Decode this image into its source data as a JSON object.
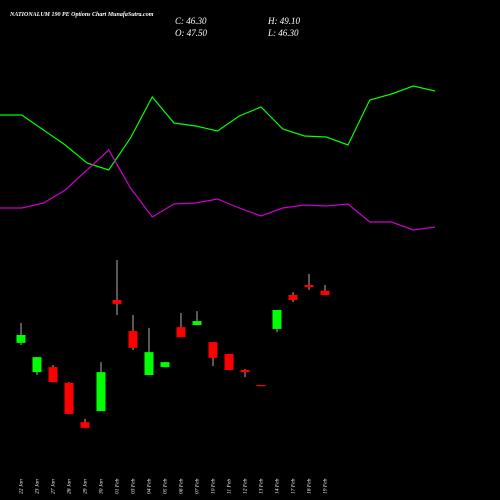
{
  "header": {
    "title": "NATIONALUM 190 PE Options Chart MunafaSutra.com",
    "close": "C: 46.30",
    "open": "O: 47.50",
    "high": "H: 49.10",
    "low": "L: 46.30"
  },
  "chart_data": [
    {
      "type": "line",
      "x": [
        0,
        1,
        2,
        3,
        4,
        5,
        6,
        7,
        8,
        9,
        10,
        11,
        12,
        13,
        14,
        15,
        16,
        17,
        18,
        19,
        20
      ],
      "xlim": [
        0,
        20
      ],
      "ylim": [
        0,
        100
      ],
      "series": [
        {
          "color": "#00ff00",
          "values": [
            67.5,
            67.5,
            60,
            52.5,
            43.5,
            40,
            56,
            76.5,
            63.5,
            62,
            59.5,
            67,
            71.5,
            60.5,
            57,
            56.5,
            52.5,
            75,
            78,
            82,
            79.5
          ]
        },
        {
          "color": "#cc00cc",
          "values": [
            21,
            21,
            23.5,
            30,
            40,
            50,
            31,
            16.5,
            23,
            23.5,
            25.5,
            21,
            17,
            21,
            22.5,
            22,
            23,
            14,
            14,
            10,
            11.5
          ]
        }
      ]
    },
    {
      "type": "candlestick",
      "ylim": [
        5.7,
        57.5
      ],
      "up_color": "#00ff00",
      "down_color": "#ff0000",
      "wick_color": "#dddddd",
      "categories": [
        "22 Jan",
        "23 Jan",
        "27 Jan",
        "28 Jan",
        "29 Jan",
        "30 Jan",
        "01 Feb",
        "03 Feb",
        "04 Feb",
        "05 Feb",
        "06 Feb",
        "07 Feb",
        "10 Feb",
        "11 Feb",
        "12 Feb",
        "13 Feb",
        "14 Feb",
        "17 Feb",
        "18 Feb",
        "19 Feb"
      ],
      "open": [
        32.9,
        24.7,
        26.1,
        21.7,
        10.7,
        13.8,
        44.9,
        36.2,
        23.9,
        26.1,
        37.3,
        37.9,
        33.1,
        29.8,
        25.3,
        21.1,
        36.8,
        46.3,
        49.1,
        47.5
      ],
      "close": [
        35.1,
        28.9,
        21.9,
        13.0,
        9.1,
        24.7,
        43.8,
        31.5,
        30.3,
        27.5,
        34.5,
        39.0,
        28.7,
        25.3,
        24.7,
        20.8,
        42.1,
        44.9,
        48.5,
        46.3
      ],
      "high": [
        38.5,
        28.9,
        26.7,
        21.9,
        11.6,
        27.5,
        56.1,
        40.7,
        37.1,
        27.5,
        41.3,
        41.8,
        33.1,
        29.8,
        25.6,
        21.1,
        42.1,
        47.1,
        52.2,
        49.1
      ],
      "low": [
        32.3,
        23.9,
        21.9,
        13.0,
        9.1,
        13.8,
        40.7,
        30.9,
        23.9,
        26.1,
        34.5,
        37.9,
        26.4,
        25.3,
        23.3,
        20.8,
        35.9,
        44.3,
        47.7,
        46.3
      ]
    }
  ]
}
